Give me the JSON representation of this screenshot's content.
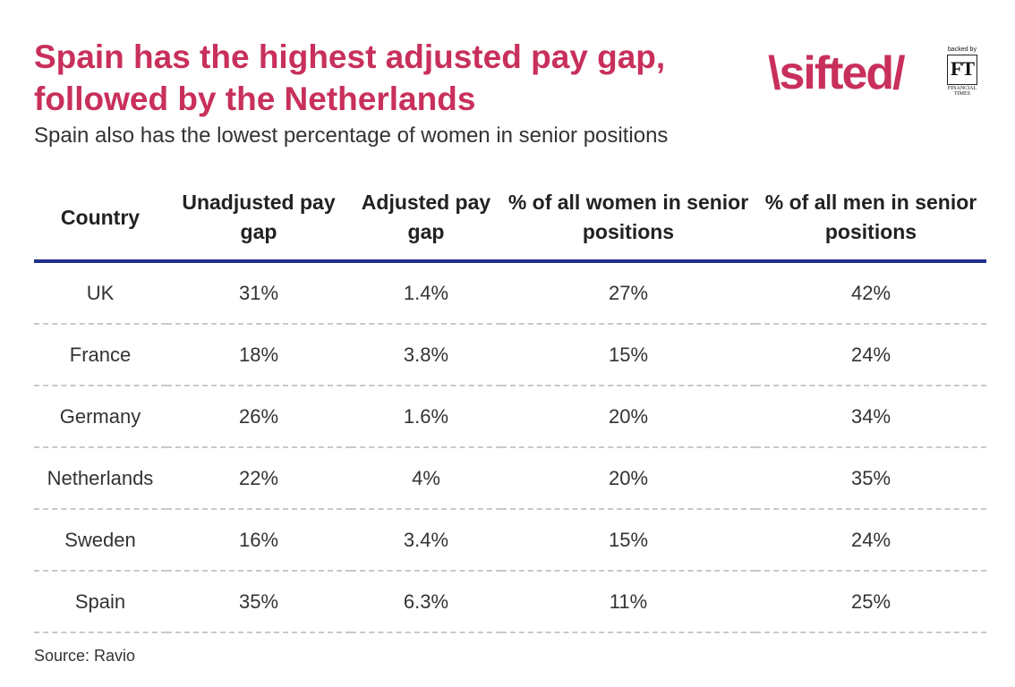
{
  "title": "Spain has the highest adjusted pay gap, followed by the Netherlands",
  "subtitle": "Spain also has the lowest percentage of women in senior positions",
  "logo": {
    "text": "\\sifted/",
    "backed_by": "backed by",
    "ft": "FT",
    "ft_name": "FINANCIAL TIMES"
  },
  "colors": {
    "title": "#c8305b",
    "header_rule": "#1f2f8a",
    "row_divider": "#c9c9c9"
  },
  "chart_data": {
    "type": "table",
    "title": "Spain has the highest adjusted pay gap, followed by the Netherlands",
    "subtitle": "Spain also has the lowest percentage of women in senior positions",
    "columns": [
      "Country",
      "Unadjusted pay gap",
      "Adjusted pay gap",
      "% of all women in senior positions",
      "% of all men in senior positions"
    ],
    "rows": [
      [
        "UK",
        "31%",
        "1.4%",
        "27%",
        "42%"
      ],
      [
        "France",
        "18%",
        "3.8%",
        "15%",
        "24%"
      ],
      [
        "Germany",
        "26%",
        "1.6%",
        "20%",
        "34%"
      ],
      [
        "Netherlands",
        "22%",
        "4%",
        "20%",
        "35%"
      ],
      [
        "Sweden",
        "16%",
        "3.4%",
        "15%",
        "24%"
      ],
      [
        "Spain",
        "35%",
        "6.3%",
        "11%",
        "25%"
      ]
    ]
  },
  "source": "Source: Ravio"
}
